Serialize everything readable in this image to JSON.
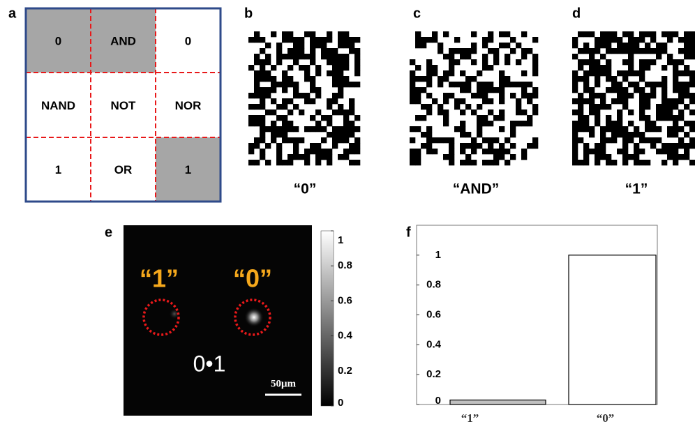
{
  "panel_a": {
    "letter": "a",
    "cells": [
      [
        "0",
        "AND",
        "0"
      ],
      [
        "NAND",
        "NOT",
        "NOR"
      ],
      [
        "1",
        "OR",
        "1"
      ]
    ]
  },
  "panel_b": {
    "letter": "b",
    "caption": "“0”"
  },
  "panel_c": {
    "letter": "c",
    "caption": "“AND”"
  },
  "panel_d": {
    "letter": "d",
    "caption": "“1”"
  },
  "panel_e": {
    "letter": "e",
    "spot_labels": [
      "“1”",
      "“0”"
    ],
    "operation": "0•1",
    "scale_bar": "50μm",
    "colorbar": {
      "lim": [
        0,
        1
      ],
      "ticks": [
        0,
        0.2,
        0.4,
        0.6,
        0.8,
        1
      ]
    }
  },
  "chart_data": {
    "type": "bar",
    "label": "f",
    "categories": [
      "“1”",
      "“0”"
    ],
    "values": [
      0.03,
      1
    ],
    "colors": [
      "#c0c0c0",
      "#ffffff"
    ],
    "ylim": [
      0,
      1.2
    ],
    "yticks": [
      0,
      0.2,
      0.4,
      0.6,
      0.8,
      1
    ]
  }
}
